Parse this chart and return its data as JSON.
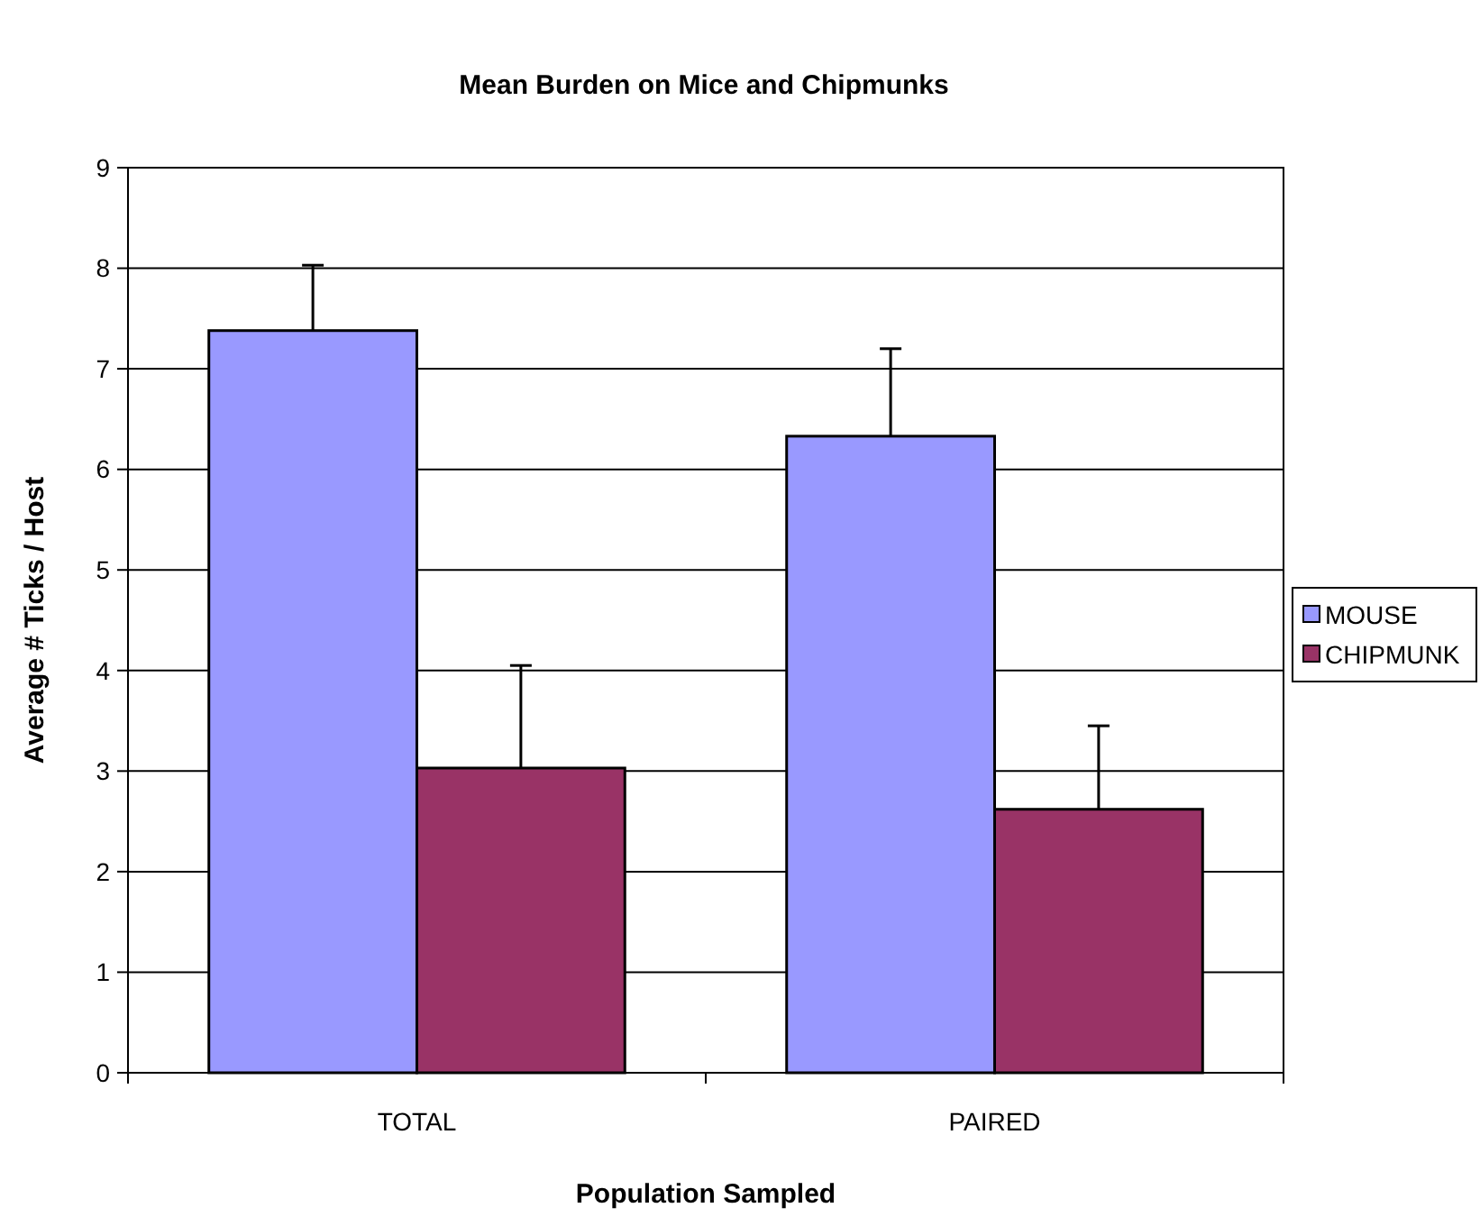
{
  "chart_data": {
    "type": "bar",
    "title": "Mean Burden on Mice and Chipmunks",
    "xlabel": "Population Sampled",
    "ylabel": "Average # Ticks / Host",
    "categories": [
      "TOTAL",
      "PAIRED"
    ],
    "series": [
      {
        "name": "MOUSE",
        "color": "#9999ff",
        "values": [
          7.38,
          6.33
        ],
        "errors": [
          [
            7.38,
            8.03
          ],
          [
            6.33,
            7.2
          ]
        ]
      },
      {
        "name": "CHIPMUNK",
        "color": "#993366",
        "values": [
          3.03,
          2.62
        ],
        "errors": [
          [
            3.03,
            4.05
          ],
          [
            2.62,
            3.45
          ]
        ]
      }
    ],
    "ylim": [
      0,
      9
    ],
    "yticks": [
      0,
      1,
      2,
      3,
      4,
      5,
      6,
      7,
      8,
      9
    ],
    "grid": "y",
    "legend": "right"
  }
}
